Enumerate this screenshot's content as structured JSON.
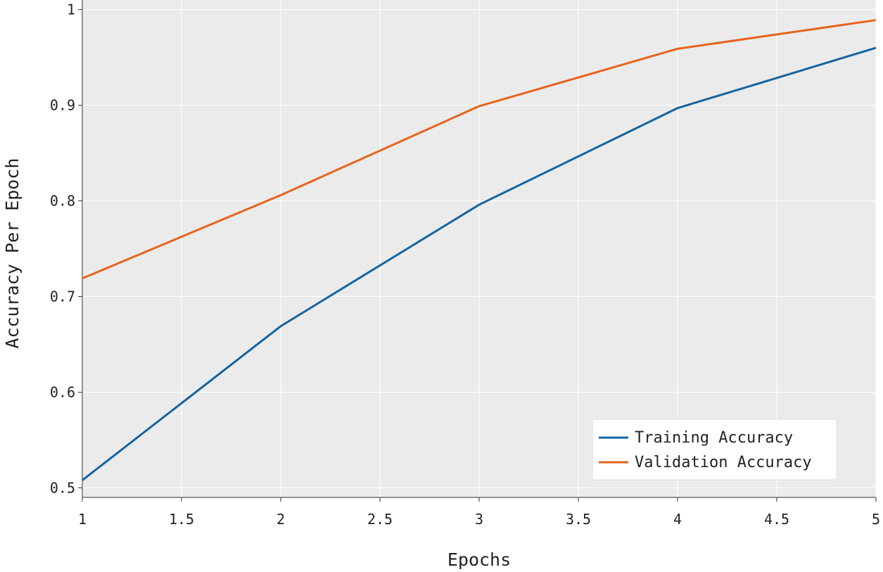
{
  "chart_data": {
    "type": "line",
    "title": "",
    "xlabel": "Epochs",
    "ylabel": "Accuracy Per Epoch",
    "xlim": [
      1,
      5
    ],
    "ylim": [
      0.49,
      1.01
    ],
    "grid": true,
    "legend_position": "lower-right",
    "x_ticks": [
      1,
      1.5,
      2,
      2.5,
      3,
      3.5,
      4,
      4.5,
      5
    ],
    "x_tick_labels": [
      "1",
      "1.5",
      "2",
      "2.5",
      "3",
      "3.5",
      "4",
      "4.5",
      "5"
    ],
    "y_ticks": [
      0.5,
      0.6,
      0.7,
      0.8,
      0.9,
      1.0
    ],
    "y_tick_labels": [
      "0.5",
      "0.6",
      "0.7",
      "0.8",
      "0.9",
      "1"
    ],
    "x": [
      1,
      2,
      3,
      4,
      5
    ],
    "series": [
      {
        "name": "Training Accuracy",
        "color": "#1464a0",
        "values": [
          0.508,
          0.669,
          0.796,
          0.897,
          0.96
        ]
      },
      {
        "name": "Validation Accuracy",
        "color": "#e8631c",
        "values": [
          0.719,
          0.806,
          0.899,
          0.959,
          0.989
        ]
      }
    ],
    "plot_background": "#ebebeb",
    "grid_color": "#ffffff"
  }
}
